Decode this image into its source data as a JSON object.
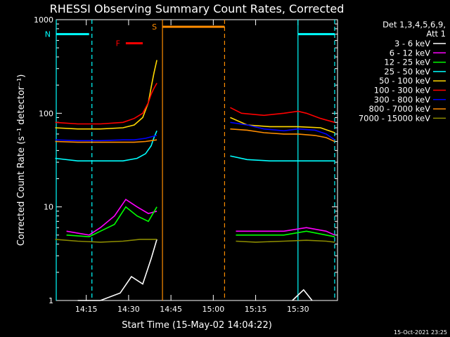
{
  "chart_data": {
    "type": "line",
    "title": "RHESSI Observing Summary Count Rates, Corrected",
    "xlabel": "Start Time (15-May-02 14:04:22)",
    "ylabel": "Corrected Count Rate (s⁻¹ detector⁻¹)",
    "y_scale": "log",
    "ylim": [
      1,
      1000
    ],
    "xlim": [
      "14:04:22",
      "15:44:00"
    ],
    "x_ticks": [
      "14:15",
      "14:30",
      "14:45",
      "15:00",
      "15:15",
      "15:30"
    ],
    "y_ticks": [
      "1",
      "10",
      "100",
      "1000"
    ],
    "grid": false,
    "legend_position": "right",
    "legend_header": [
      "Det 1,3,4,5,6,9,",
      "Att 1"
    ],
    "data_gap": [
      "14:40:00",
      "15:05:00"
    ],
    "flags": [
      {
        "label": "N",
        "color": "#00ffff",
        "segments": [
          [
            "14:04:22",
            "14:16:00"
          ],
          [
            "15:30:00",
            "15:43:00"
          ]
        ],
        "level": 700
      },
      {
        "label": "F",
        "color": "#ff0000",
        "segments": [
          [
            "14:29:00",
            "14:35:00"
          ]
        ],
        "level": 560
      },
      {
        "label": "S",
        "color": "#ff8c00",
        "segments": [
          [
            "14:42:00",
            "15:04:00"
          ]
        ],
        "level": 840
      }
    ],
    "markers": [
      {
        "time": "14:04:22",
        "color": "#00ffff",
        "style": "solid"
      },
      {
        "time": "14:17:00",
        "color": "#00ffff",
        "style": "dashed"
      },
      {
        "time": "14:42:00",
        "color": "#ff8c00",
        "style": "solid"
      },
      {
        "time": "15:04:00",
        "color": "#ff8c00",
        "style": "dashed"
      },
      {
        "time": "15:30:00",
        "color": "#00ffff",
        "style": "solid"
      },
      {
        "time": "15:43:00",
        "color": "#00ffff",
        "style": "dashed"
      }
    ],
    "series": [
      {
        "name": "3 - 6 keV",
        "color": "#ffffff",
        "points": [
          [
            "14:12",
            1.0
          ],
          [
            "14:20",
            1.0
          ],
          [
            "14:27",
            1.2
          ],
          [
            "14:31",
            1.8
          ],
          [
            "14:35",
            1.5
          ],
          [
            "14:38",
            2.8
          ],
          [
            "14:40",
            4.5
          ],
          [
            "15:05",
            null
          ],
          [
            "15:28",
            1.0
          ],
          [
            "15:32",
            1.3
          ],
          [
            "15:35",
            1.0
          ]
        ]
      },
      {
        "name": "6 - 12 keV",
        "color": "#ff00ff",
        "points": [
          [
            "14:08",
            5.5
          ],
          [
            "14:16",
            5.0
          ],
          [
            "14:20",
            6.0
          ],
          [
            "14:25",
            8.0
          ],
          [
            "14:29",
            12.0
          ],
          [
            "14:33",
            10.0
          ],
          [
            "14:37",
            8.5
          ],
          [
            "14:40",
            9.0
          ],
          [
            "15:05",
            null
          ],
          [
            "15:08",
            5.5
          ],
          [
            "15:15",
            5.5
          ],
          [
            "15:25",
            5.5
          ],
          [
            "15:33",
            6.0
          ],
          [
            "15:40",
            5.5
          ],
          [
            "15:43",
            5.0
          ]
        ]
      },
      {
        "name": "12 - 25 keV",
        "color": "#00ff00",
        "points": [
          [
            "14:08",
            5.0
          ],
          [
            "14:16",
            4.8
          ],
          [
            "14:20",
            5.5
          ],
          [
            "14:25",
            6.5
          ],
          [
            "14:29",
            10.0
          ],
          [
            "14:33",
            8.0
          ],
          [
            "14:37",
            7.0
          ],
          [
            "14:40",
            10.0
          ],
          [
            "15:05",
            null
          ],
          [
            "15:08",
            5.0
          ],
          [
            "15:15",
            5.0
          ],
          [
            "15:25",
            5.0
          ],
          [
            "15:33",
            5.5
          ],
          [
            "15:40",
            5.0
          ],
          [
            "15:43",
            4.8
          ]
        ]
      },
      {
        "name": "25 - 50 keV",
        "color": "#00ffff",
        "points": [
          [
            "14:04",
            33
          ],
          [
            "14:12",
            31
          ],
          [
            "14:20",
            31
          ],
          [
            "14:28",
            31
          ],
          [
            "14:33",
            33
          ],
          [
            "14:36",
            37
          ],
          [
            "14:38",
            45
          ],
          [
            "14:39",
            55
          ],
          [
            "14:40",
            65
          ],
          [
            "15:05",
            null
          ],
          [
            "15:06",
            35
          ],
          [
            "15:12",
            32
          ],
          [
            "15:20",
            31
          ],
          [
            "15:30",
            31
          ],
          [
            "15:40",
            31
          ],
          [
            "15:43",
            31
          ]
        ]
      },
      {
        "name": "50 - 100 keV",
        "color": "#ffd700",
        "points": [
          [
            "14:04",
            70
          ],
          [
            "14:12",
            68
          ],
          [
            "14:20",
            68
          ],
          [
            "14:28",
            70
          ],
          [
            "14:32",
            75
          ],
          [
            "14:35",
            90
          ],
          [
            "14:37",
            130
          ],
          [
            "14:38",
            190
          ],
          [
            "14:39",
            270
          ],
          [
            "14:40",
            370
          ],
          [
            "15:05",
            null
          ],
          [
            "15:06",
            90
          ],
          [
            "15:12",
            75
          ],
          [
            "15:20",
            72
          ],
          [
            "15:30",
            72
          ],
          [
            "15:38",
            70
          ],
          [
            "15:43",
            62
          ]
        ]
      },
      {
        "name": "100 - 300 keV",
        "color": "#ff0000",
        "points": [
          [
            "14:04",
            80
          ],
          [
            "14:12",
            77
          ],
          [
            "14:20",
            77
          ],
          [
            "14:28",
            80
          ],
          [
            "14:32",
            88
          ],
          [
            "14:35",
            100
          ],
          [
            "14:37",
            130
          ],
          [
            "14:38",
            160
          ],
          [
            "14:39",
            185
          ],
          [
            "14:40",
            210
          ],
          [
            "15:05",
            null
          ],
          [
            "15:06",
            115
          ],
          [
            "15:10",
            100
          ],
          [
            "15:18",
            95
          ],
          [
            "15:25",
            100
          ],
          [
            "15:30",
            105
          ],
          [
            "15:33",
            100
          ],
          [
            "15:38",
            88
          ],
          [
            "15:43",
            80
          ]
        ]
      },
      {
        "name": "300 - 800 keV",
        "color": "#0000ff",
        "points": [
          [
            "14:04",
            52
          ],
          [
            "14:12",
            51
          ],
          [
            "14:20",
            51
          ],
          [
            "14:28",
            52
          ],
          [
            "14:32",
            52
          ],
          [
            "14:36",
            54
          ],
          [
            "14:38",
            56
          ],
          [
            "14:40",
            58
          ],
          [
            "15:05",
            null
          ],
          [
            "15:06",
            80
          ],
          [
            "15:12",
            75
          ],
          [
            "15:18",
            68
          ],
          [
            "15:25",
            65
          ],
          [
            "15:30",
            68
          ],
          [
            "15:36",
            66
          ],
          [
            "15:40",
            60
          ],
          [
            "15:43",
            52
          ]
        ]
      },
      {
        "name": "800 - 7000 keV",
        "color": "#ff8c00",
        "points": [
          [
            "14:04",
            50
          ],
          [
            "14:12",
            49
          ],
          [
            "14:20",
            49
          ],
          [
            "14:28",
            49
          ],
          [
            "14:32",
            49
          ],
          [
            "14:36",
            50
          ],
          [
            "14:40",
            52
          ],
          [
            "15:05",
            null
          ],
          [
            "15:06",
            68
          ],
          [
            "15:12",
            66
          ],
          [
            "15:18",
            62
          ],
          [
            "15:25",
            60
          ],
          [
            "15:30",
            60
          ],
          [
            "15:36",
            58
          ],
          [
            "15:40",
            55
          ],
          [
            "15:43",
            50
          ]
        ]
      },
      {
        "name": "7000 - 15000 keV",
        "color": "#8b8b00",
        "points": [
          [
            "14:04",
            4.5
          ],
          [
            "14:12",
            4.3
          ],
          [
            "14:20",
            4.2
          ],
          [
            "14:28",
            4.3
          ],
          [
            "14:34",
            4.5
          ],
          [
            "14:40",
            4.5
          ],
          [
            "15:05",
            null
          ],
          [
            "15:08",
            4.3
          ],
          [
            "15:15",
            4.2
          ],
          [
            "15:25",
            4.3
          ],
          [
            "15:33",
            4.4
          ],
          [
            "15:40",
            4.3
          ],
          [
            "15:43",
            4.2
          ]
        ]
      }
    ]
  },
  "footer": {
    "timestamp": "15-Oct-2021 23:25"
  }
}
